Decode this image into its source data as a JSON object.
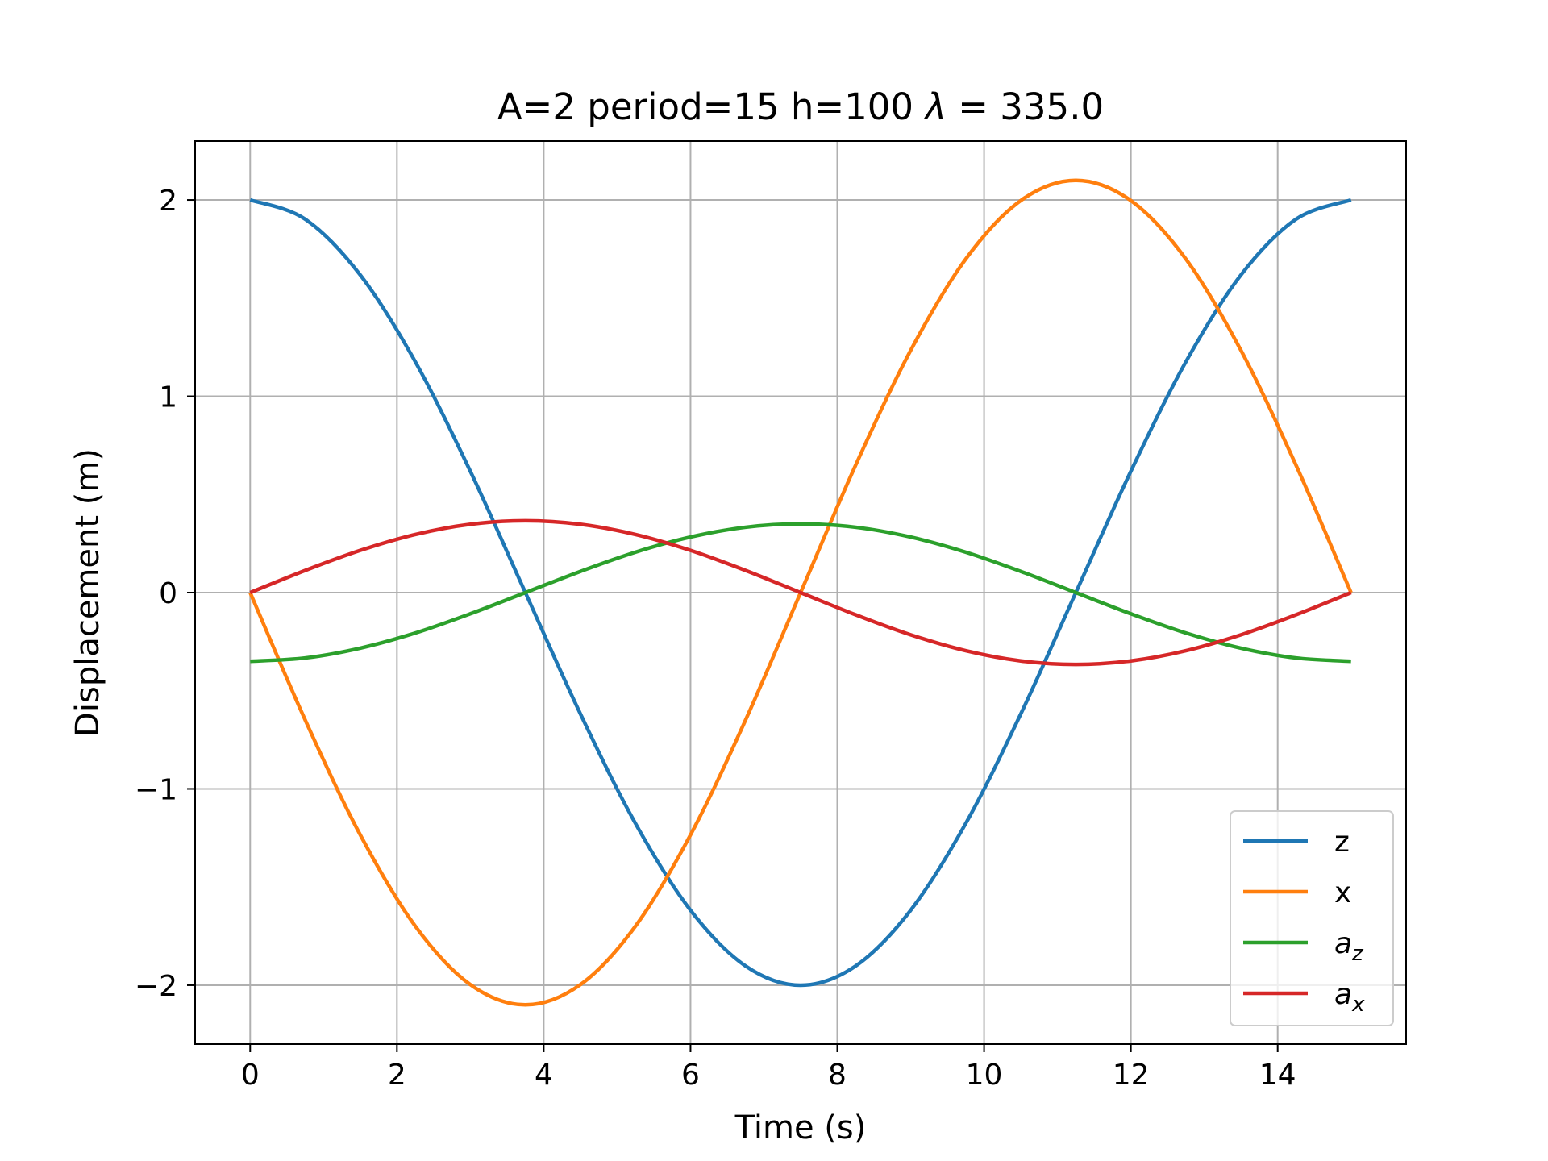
{
  "chart_data": {
    "type": "line",
    "title": "A=2 period=15 h=100 λ = 335.0",
    "title_parts": {
      "prefix": "A=2 period=15 h=100 ",
      "symbol": "λ",
      "suffix": " = 335.0"
    },
    "xlabel": "Time (s)",
    "ylabel": "Displacement (m)",
    "xlim": [
      -0.75,
      15.75
    ],
    "ylim": [
      -2.3,
      2.3
    ],
    "xticks": [
      0,
      2,
      4,
      6,
      8,
      10,
      12,
      14
    ],
    "xtick_labels": [
      "0",
      "2",
      "4",
      "6",
      "8",
      "10",
      "12",
      "14"
    ],
    "yticks": [
      -2,
      -1,
      0,
      1,
      2
    ],
    "ytick_labels": [
      "−2",
      "−1",
      "0",
      "1",
      "2"
    ],
    "grid": true,
    "legend_position": "lower right",
    "x": [
      0,
      0.75,
      1.5,
      2.25,
      3,
      3.75,
      4.5,
      5.25,
      6,
      6.75,
      7.5,
      8.25,
      9,
      9.75,
      10.5,
      11.25,
      12,
      12.75,
      13.5,
      14.25,
      15
    ],
    "series": [
      {
        "name": "z",
        "label_base": "z",
        "label_sub": "",
        "color": "#1f77b4",
        "values": [
          2.0,
          1.902,
          1.618,
          1.176,
          0.618,
          0.0,
          -0.618,
          -1.176,
          -1.618,
          -1.902,
          -2.0,
          -1.902,
          -1.618,
          -1.176,
          -0.618,
          0.0,
          0.618,
          1.176,
          1.618,
          1.902,
          2.0
        ]
      },
      {
        "name": "x",
        "label_base": "x",
        "label_sub": "",
        "color": "#ff7f0e",
        "values": [
          0.0,
          -0.649,
          -1.234,
          -1.699,
          -1.997,
          -2.1,
          -1.997,
          -1.699,
          -1.234,
          -0.649,
          0.0,
          0.649,
          1.234,
          1.699,
          1.997,
          2.1,
          1.997,
          1.699,
          1.234,
          0.649,
          0.0
        ]
      },
      {
        "name": "a_z",
        "label_base": "a",
        "label_sub": "z",
        "color": "#2ca02c",
        "values": [
          -0.35,
          -0.333,
          -0.283,
          -0.206,
          -0.108,
          0.0,
          0.108,
          0.206,
          0.283,
          0.333,
          0.35,
          0.333,
          0.283,
          0.206,
          0.108,
          0.0,
          -0.108,
          -0.206,
          -0.283,
          -0.333,
          -0.35
        ]
      },
      {
        "name": "a_x",
        "label_base": "a",
        "label_sub": "x",
        "color": "#d62728",
        "values": [
          0.0,
          0.113,
          0.215,
          0.296,
          0.348,
          0.366,
          0.348,
          0.296,
          0.215,
          0.113,
          0.0,
          -0.113,
          -0.215,
          -0.296,
          -0.348,
          -0.366,
          -0.348,
          -0.296,
          -0.215,
          -0.113,
          0.0
        ]
      }
    ]
  }
}
